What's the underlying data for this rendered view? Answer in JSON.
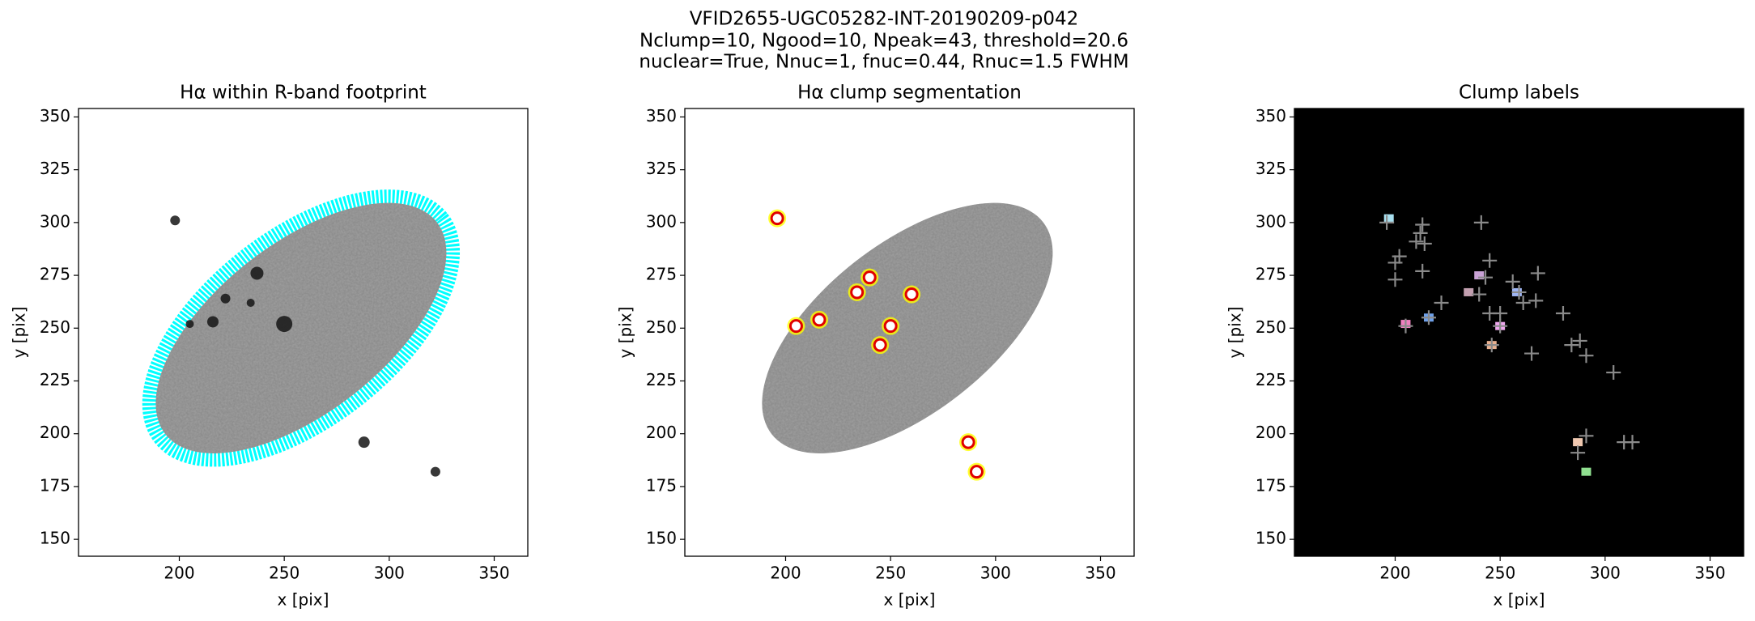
{
  "suptitle": [
    "VFID2655-UGC05282-INT-20190209-p042",
    "Nclump=10, Ngood=10, Npeak=43, threshold=20.6",
    "nuclear=True, Nnuc=1, fnuc=0.44, Rnuc=1.5 FWHM"
  ],
  "chart_data": [
    {
      "type": "image",
      "title": "Hα within R-band footprint",
      "xlabel": "x [pix]",
      "ylabel": "y [pix]",
      "xlim": [
        152,
        366
      ],
      "ylim": [
        142,
        354
      ],
      "xticks": [
        200,
        250,
        300,
        350
      ],
      "yticks": [
        150,
        175,
        200,
        225,
        250,
        275,
        300,
        325,
        350
      ],
      "background": "#ffffff",
      "footprint_color": "#00ffff"
    },
    {
      "type": "scatter",
      "title": "Hα clump segmentation",
      "xlabel": "x [pix]",
      "ylabel": "y [pix]",
      "xlim": [
        152,
        366
      ],
      "ylim": [
        142,
        354
      ],
      "xticks": [
        200,
        250,
        300,
        350
      ],
      "yticks": [
        150,
        175,
        200,
        225,
        250,
        275,
        300,
        325,
        350
      ],
      "background": "#ffffff",
      "marker_color": "#e00000",
      "marker_fill": "#ffff00",
      "x": [
        196,
        260,
        240,
        234,
        250,
        205,
        216,
        245,
        287,
        291
      ],
      "y": [
        302,
        266,
        274,
        267,
        251,
        251,
        254,
        242,
        196,
        182
      ]
    },
    {
      "type": "scatter",
      "title": "Clump labels",
      "xlabel": "x [pix]",
      "ylabel": "y [pix]",
      "xlim": [
        152,
        366
      ],
      "ylim": [
        142,
        354
      ],
      "xticks": [
        200,
        250,
        300,
        350
      ],
      "yticks": [
        150,
        175,
        200,
        225,
        250,
        275,
        300,
        325,
        350
      ],
      "background": "#000000",
      "marker_color": "#8a8a8a",
      "x": [
        196,
        200,
        202,
        200,
        210,
        213,
        212,
        214,
        213,
        222,
        241,
        243,
        245,
        240,
        245,
        250,
        256,
        259,
        261,
        268,
        267,
        280,
        288,
        284,
        291,
        265,
        304,
        287,
        291,
        309,
        313,
        205,
        246,
        250,
        216
      ],
      "y": [
        300,
        281,
        284,
        273,
        291,
        299,
        295,
        290,
        277,
        262,
        300,
        274,
        282,
        266,
        257,
        257,
        272,
        267,
        262,
        276,
        263,
        257,
        244,
        242,
        237,
        238,
        229,
        191,
        199,
        196,
        196,
        251,
        242,
        251,
        255
      ],
      "clumps": {
        "x": [
          197,
          258,
          240,
          235,
          250,
          205,
          216,
          246,
          287,
          291
        ],
        "y": [
          302,
          267,
          275,
          267,
          251,
          252,
          255,
          242,
          196,
          182
        ],
        "colors": [
          "#a8e0f0",
          "#9fb6f5",
          "#c9a2d6",
          "#c3a0b0",
          "#f0a8f0",
          "#f080c0",
          "#6fa0e8",
          "#e8b090",
          "#f0c8b0",
          "#90e090"
        ]
      }
    }
  ]
}
